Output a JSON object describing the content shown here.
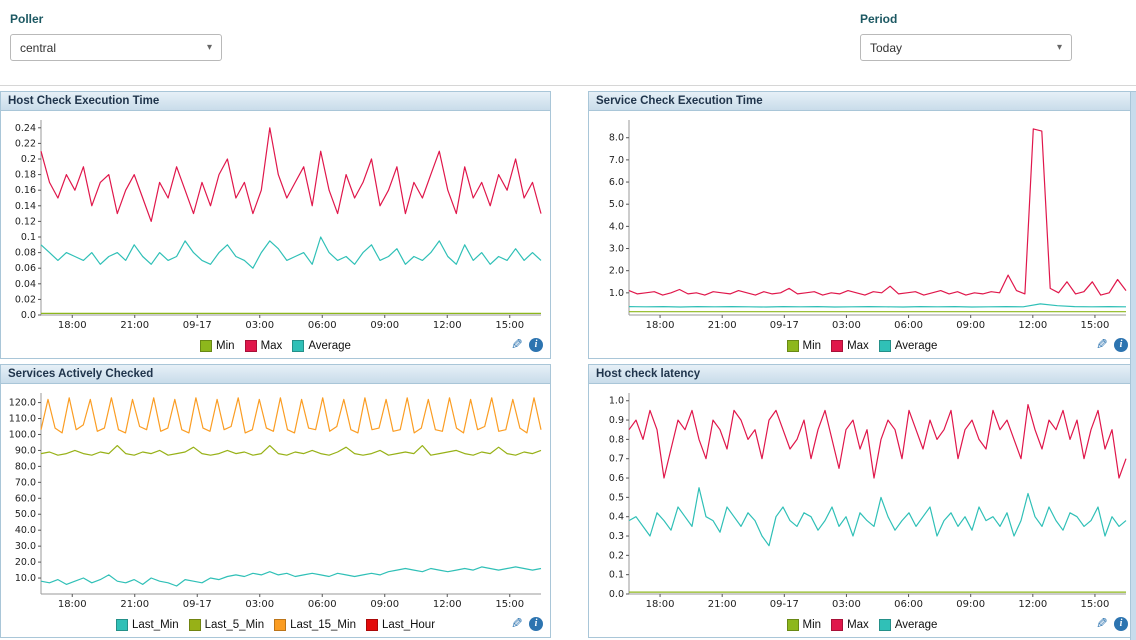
{
  "toolbar": {
    "poller_label": "Poller",
    "poller_value": "central",
    "period_label": "Period",
    "period_value": "Today"
  },
  "icons": {
    "edit": "✎",
    "info": "i"
  },
  "x_axis": {
    "ticks": [
      {
        "label": "18:00",
        "pos": 0.0625
      },
      {
        "label": "21:00",
        "pos": 0.1875
      },
      {
        "label": "09-17",
        "pos": 0.3125
      },
      {
        "label": "03:00",
        "pos": 0.4375
      },
      {
        "label": "06:00",
        "pos": 0.5625
      },
      {
        "label": "09:00",
        "pos": 0.6875
      },
      {
        "label": "12:00",
        "pos": 0.8125
      },
      {
        "label": "15:00",
        "pos": 0.9375
      }
    ]
  },
  "chart_data": [
    {
      "type": "line",
      "title": "Host Check Execution Time",
      "ymin": 0,
      "ymax": 0.25,
      "y_ticks": [
        {
          "v": 0,
          "label": "0.0"
        },
        {
          "v": 0.02,
          "label": "0.02"
        },
        {
          "v": 0.04,
          "label": "0.04"
        },
        {
          "v": 0.06,
          "label": "0.06"
        },
        {
          "v": 0.08,
          "label": "0.08"
        },
        {
          "v": 0.1,
          "label": "0.1"
        },
        {
          "v": 0.12,
          "label": "0.12"
        },
        {
          "v": 0.14,
          "label": "0.14"
        },
        {
          "v": 0.16,
          "label": "0.16"
        },
        {
          "v": 0.18,
          "label": "0.18"
        },
        {
          "v": 0.2,
          "label": "0.2"
        },
        {
          "v": 0.22,
          "label": "0.22"
        },
        {
          "v": 0.24,
          "label": "0.24"
        }
      ],
      "series": [
        {
          "name": "Min",
          "color": "#8db71c",
          "values": [
            0.002,
            0.002
          ]
        },
        {
          "name": "Max",
          "color": "#e0174b",
          "values": [
            0.21,
            0.17,
            0.15,
            0.18,
            0.16,
            0.19,
            0.14,
            0.17,
            0.18,
            0.13,
            0.16,
            0.18,
            0.15,
            0.12,
            0.17,
            0.15,
            0.19,
            0.16,
            0.13,
            0.17,
            0.14,
            0.18,
            0.2,
            0.15,
            0.17,
            0.13,
            0.16,
            0.24,
            0.18,
            0.15,
            0.17,
            0.19,
            0.14,
            0.21,
            0.16,
            0.13,
            0.18,
            0.15,
            0.17,
            0.2,
            0.14,
            0.16,
            0.19,
            0.13,
            0.17,
            0.15,
            0.18,
            0.21,
            0.16,
            0.13,
            0.19,
            0.15,
            0.17,
            0.14,
            0.18,
            0.16,
            0.2,
            0.15,
            0.17,
            0.13
          ]
        },
        {
          "name": "Average",
          "color": "#30c0b7",
          "values": [
            0.09,
            0.08,
            0.07,
            0.08,
            0.075,
            0.07,
            0.08,
            0.065,
            0.075,
            0.08,
            0.07,
            0.09,
            0.075,
            0.065,
            0.08,
            0.07,
            0.075,
            0.095,
            0.08,
            0.07,
            0.065,
            0.08,
            0.09,
            0.075,
            0.07,
            0.06,
            0.08,
            0.095,
            0.085,
            0.07,
            0.075,
            0.08,
            0.065,
            0.1,
            0.08,
            0.07,
            0.075,
            0.065,
            0.08,
            0.09,
            0.07,
            0.075,
            0.085,
            0.065,
            0.075,
            0.07,
            0.08,
            0.095,
            0.075,
            0.065,
            0.09,
            0.07,
            0.08,
            0.065,
            0.075,
            0.07,
            0.085,
            0.07,
            0.08,
            0.07
          ]
        }
      ]
    },
    {
      "type": "line",
      "title": "Service Check Execution Time",
      "ymin": 0,
      "ymax": 8.8,
      "y_ticks": [
        {
          "v": 1,
          "label": "1.0"
        },
        {
          "v": 2,
          "label": "2.0"
        },
        {
          "v": 3,
          "label": "3.0"
        },
        {
          "v": 4,
          "label": "4.0"
        },
        {
          "v": 5,
          "label": "5.0"
        },
        {
          "v": 6,
          "label": "6.0"
        },
        {
          "v": 7,
          "label": "7.0"
        },
        {
          "v": 8,
          "label": "8.0"
        }
      ],
      "series": [
        {
          "name": "Min",
          "color": "#8db71c",
          "values": [
            0.15,
            0.15
          ]
        },
        {
          "name": "Max",
          "color": "#e0174b",
          "values": [
            1.1,
            0.95,
            1.0,
            1.05,
            0.9,
            1.0,
            1.15,
            0.95,
            1.0,
            0.9,
            1.05,
            1.0,
            0.95,
            1.1,
            1.0,
            0.9,
            1.05,
            0.95,
            1.0,
            1.2,
            0.95,
            1.0,
            1.05,
            0.9,
            1.0,
            0.95,
            1.1,
            1.0,
            0.9,
            1.05,
            1.0,
            1.3,
            0.95,
            1.0,
            1.05,
            0.9,
            1.0,
            1.1,
            0.95,
            1.05,
            0.9,
            1.0,
            0.95,
            1.05,
            1.0,
            1.8,
            1.1,
            0.95,
            8.4,
            8.3,
            1.2,
            1.0,
            1.5,
            0.95,
            1.05,
            1.5,
            0.9,
            1.0,
            1.6,
            1.1
          ]
        },
        {
          "name": "Average",
          "color": "#30c0b7",
          "values": [
            0.38,
            0.37,
            0.38,
            0.36,
            0.38,
            0.37,
            0.38,
            0.37,
            0.36,
            0.38,
            0.37,
            0.38,
            0.36,
            0.37,
            0.38,
            0.37,
            0.36,
            0.38,
            0.37,
            0.38,
            0.36,
            0.37,
            0.38,
            0.37,
            0.5,
            0.42,
            0.38,
            0.37,
            0.38,
            0.37
          ]
        }
      ]
    },
    {
      "type": "line",
      "title": "Services Actively Checked",
      "ymin": 0,
      "ymax": 126,
      "y_ticks": [
        {
          "v": 10,
          "label": "10.0"
        },
        {
          "v": 20,
          "label": "20.0"
        },
        {
          "v": 30,
          "label": "30.0"
        },
        {
          "v": 40,
          "label": "40.0"
        },
        {
          "v": 50,
          "label": "50.0"
        },
        {
          "v": 60,
          "label": "60.0"
        },
        {
          "v": 70,
          "label": "70.0"
        },
        {
          "v": 80,
          "label": "80.0"
        },
        {
          "v": 90,
          "label": "90.0"
        },
        {
          "v": 100,
          "label": "100.0"
        },
        {
          "v": 110,
          "label": "110.0"
        },
        {
          "v": 120,
          "label": "120.0"
        }
      ],
      "series": [
        {
          "name": "Last_Min",
          "color": "#30c0b7",
          "values": [
            8,
            7,
            9,
            6,
            8,
            10,
            7,
            9,
            12,
            8,
            7,
            9,
            6,
            10,
            8,
            7,
            5,
            9,
            8,
            7,
            10,
            9,
            11,
            12,
            11,
            13,
            12,
            14,
            12,
            13,
            11,
            12,
            13,
            12,
            11,
            13,
            12,
            11,
            12,
            13,
            12,
            14,
            15,
            16,
            15,
            14,
            16,
            15,
            14,
            15,
            16,
            15,
            17,
            16,
            15,
            16,
            17,
            16,
            15,
            16
          ]
        },
        {
          "name": "Last_5_Min",
          "color": "#97b117",
          "values": [
            88,
            89,
            87,
            88,
            90,
            88,
            87,
            89,
            88,
            93,
            88,
            87,
            89,
            88,
            90,
            87,
            88,
            89,
            92,
            88,
            87,
            88,
            90,
            88,
            89,
            87,
            88,
            93,
            88,
            87,
            89,
            88,
            90,
            88,
            87,
            89,
            92,
            88,
            87,
            88,
            90,
            87,
            88,
            89,
            88,
            93,
            87,
            88,
            89,
            90,
            88,
            87,
            89,
            88,
            92,
            88,
            87,
            89,
            88,
            90
          ]
        },
        {
          "name": "Last_15_Min",
          "color": "#fb9d23",
          "values": [
            103,
            122,
            104,
            101,
            123,
            103,
            106,
            122,
            102,
            104,
            123,
            103,
            101,
            122,
            105,
            103,
            123,
            102,
            104,
            122,
            103,
            101,
            123,
            104,
            102,
            122,
            103,
            105,
            123,
            101,
            103,
            122,
            104,
            102,
            123,
            103,
            101,
            122,
            104,
            103,
            123,
            102,
            105,
            122,
            103,
            101,
            123,
            103,
            104,
            122,
            102,
            103,
            123,
            101,
            104,
            122,
            103,
            102,
            123,
            104,
            101,
            122,
            103,
            105,
            123,
            102,
            103,
            122,
            104,
            101,
            123,
            103
          ]
        },
        {
          "name": "Last_Hour",
          "color": "#e30b0b",
          "values": []
        }
      ]
    },
    {
      "type": "line",
      "title": "Host check latency",
      "ymin": 0,
      "ymax": 1.04,
      "y_ticks": [
        {
          "v": 0,
          "label": "0.0"
        },
        {
          "v": 0.1,
          "label": "0.1"
        },
        {
          "v": 0.2,
          "label": "0.2"
        },
        {
          "v": 0.3,
          "label": "0.3"
        },
        {
          "v": 0.4,
          "label": "0.4"
        },
        {
          "v": 0.5,
          "label": "0.5"
        },
        {
          "v": 0.6,
          "label": "0.6"
        },
        {
          "v": 0.7,
          "label": "0.7"
        },
        {
          "v": 0.8,
          "label": "0.8"
        },
        {
          "v": 0.9,
          "label": "0.9"
        },
        {
          "v": 1,
          "label": "1.0"
        }
      ],
      "series": [
        {
          "name": "Min",
          "color": "#8db71c",
          "values": [
            0.01,
            0.01
          ]
        },
        {
          "name": "Max",
          "color": "#e0174b",
          "values": [
            0.85,
            0.9,
            0.8,
            0.95,
            0.85,
            0.6,
            0.75,
            0.9,
            0.85,
            0.95,
            0.8,
            0.7,
            0.9,
            0.85,
            0.75,
            0.95,
            0.9,
            0.8,
            0.85,
            0.7,
            0.9,
            0.95,
            0.85,
            0.75,
            0.8,
            0.9,
            0.7,
            0.85,
            0.95,
            0.8,
            0.65,
            0.85,
            0.9,
            0.75,
            0.85,
            0.6,
            0.8,
            0.9,
            0.85,
            0.7,
            0.95,
            0.85,
            0.75,
            0.9,
            0.8,
            0.85,
            0.95,
            0.7,
            0.85,
            0.9,
            0.8,
            0.75,
            0.95,
            0.85,
            0.9,
            0.8,
            0.7,
            0.98,
            0.85,
            0.75,
            0.9,
            0.85,
            0.95,
            0.8,
            0.9,
            0.7,
            0.85,
            0.95,
            0.75,
            0.85,
            0.6,
            0.7
          ]
        },
        {
          "name": "Average",
          "color": "#30c0b7",
          "values": [
            0.38,
            0.4,
            0.35,
            0.3,
            0.42,
            0.38,
            0.33,
            0.45,
            0.4,
            0.35,
            0.55,
            0.4,
            0.38,
            0.32,
            0.45,
            0.4,
            0.35,
            0.42,
            0.38,
            0.3,
            0.25,
            0.4,
            0.45,
            0.38,
            0.35,
            0.42,
            0.4,
            0.33,
            0.38,
            0.45,
            0.35,
            0.4,
            0.3,
            0.42,
            0.38,
            0.35,
            0.5,
            0.4,
            0.33,
            0.38,
            0.42,
            0.35,
            0.4,
            0.45,
            0.3,
            0.38,
            0.42,
            0.35,
            0.4,
            0.33,
            0.45,
            0.38,
            0.4,
            0.35,
            0.42,
            0.3,
            0.38,
            0.52,
            0.4,
            0.35,
            0.45,
            0.38,
            0.33,
            0.42,
            0.4,
            0.35,
            0.38,
            0.45,
            0.3,
            0.4,
            0.35,
            0.38
          ]
        }
      ]
    }
  ]
}
